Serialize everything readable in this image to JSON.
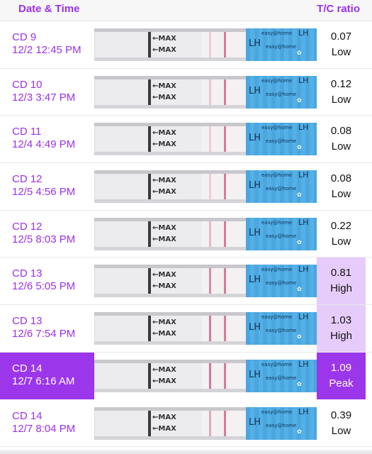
{
  "header": {
    "date_time_label": "Date & Time",
    "ratio_label": "T/C ratio"
  },
  "test_strip": {
    "max_label": "←MAX",
    "lh_label": "LH",
    "brand_label": "easy@home",
    "barcode_symbol": "✿"
  },
  "rows": [
    {
      "cd": "CD 9",
      "datetime": "12/2 12:45 PM",
      "ratio": "0.07",
      "level": "Low",
      "state": "low",
      "t_intensity": 0.1
    },
    {
      "cd": "CD 10",
      "datetime": "12/3 3:47 PM",
      "ratio": "0.12",
      "level": "Low",
      "state": "low",
      "t_intensity": 0.15
    },
    {
      "cd": "CD 11",
      "datetime": "12/4 4:49 PM",
      "ratio": "0.08",
      "level": "Low",
      "state": "low",
      "t_intensity": 0.1
    },
    {
      "cd": "CD 12",
      "datetime": "12/5 4:56 PM",
      "ratio": "0.08",
      "level": "Low",
      "state": "low",
      "t_intensity": 0.1
    },
    {
      "cd": "CD 12",
      "datetime": "12/5 8:03 PM",
      "ratio": "0.22",
      "level": "Low",
      "state": "low",
      "t_intensity": 0.3
    },
    {
      "cd": "CD 13",
      "datetime": "12/6 5:05 PM",
      "ratio": "0.81",
      "level": "High",
      "state": "high",
      "t_intensity": 0.75
    },
    {
      "cd": "CD 13",
      "datetime": "12/6 7:54 PM",
      "ratio": "1.03",
      "level": "High",
      "state": "high",
      "t_intensity": 0.9
    },
    {
      "cd": "CD 14",
      "datetime": "12/7 6:16 AM",
      "ratio": "1.09",
      "level": "Peak",
      "state": "peak",
      "t_intensity": 0.95,
      "selected": true
    },
    {
      "cd": "CD 14",
      "datetime": "12/7 8:04 PM",
      "ratio": "0.39",
      "level": "Low",
      "state": "low",
      "t_intensity": 0.45
    }
  ],
  "colors": {
    "accent": "#9b36ea",
    "high_bg": "#e6ccfa",
    "control_line": "#d77a96",
    "strip_blue": "#4aa6df"
  }
}
